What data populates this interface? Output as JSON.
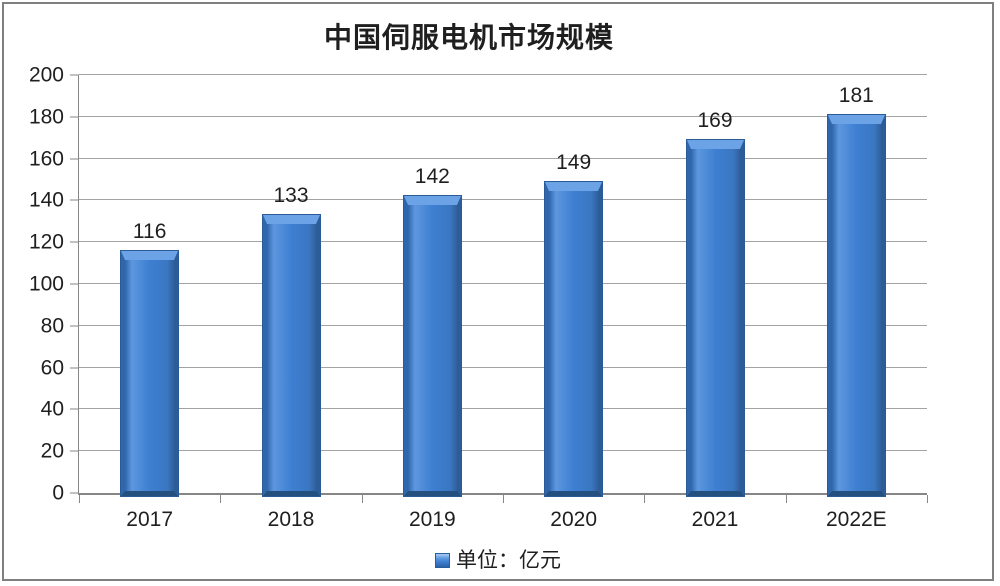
{
  "chart_data": {
    "type": "bar",
    "title": "中国伺服电机市场规模",
    "categories": [
      "2017",
      "2018",
      "2019",
      "2020",
      "2021",
      "2022E"
    ],
    "values": [
      116,
      133,
      142,
      149,
      169,
      181
    ],
    "xlabel": "",
    "ylabel": "",
    "ylim": [
      0,
      200
    ],
    "yticks": [
      0,
      20,
      40,
      60,
      80,
      100,
      120,
      140,
      160,
      180,
      200
    ],
    "grid": true,
    "legend": {
      "label": "单位：亿元",
      "position": "bottom-center",
      "marker": "blue-beveled-square"
    }
  },
  "style": {
    "bar_fill": "#3E7FD2",
    "bar_highlight": "#6CA3E6",
    "bar_edge_dark": "#2F66AC",
    "bar_bottom": "#24507F",
    "grid_color": "#A3A3A3",
    "axis_color": "#868686",
    "frame_border": "#7F7F7F",
    "text_color": "#1F1F1F"
  }
}
